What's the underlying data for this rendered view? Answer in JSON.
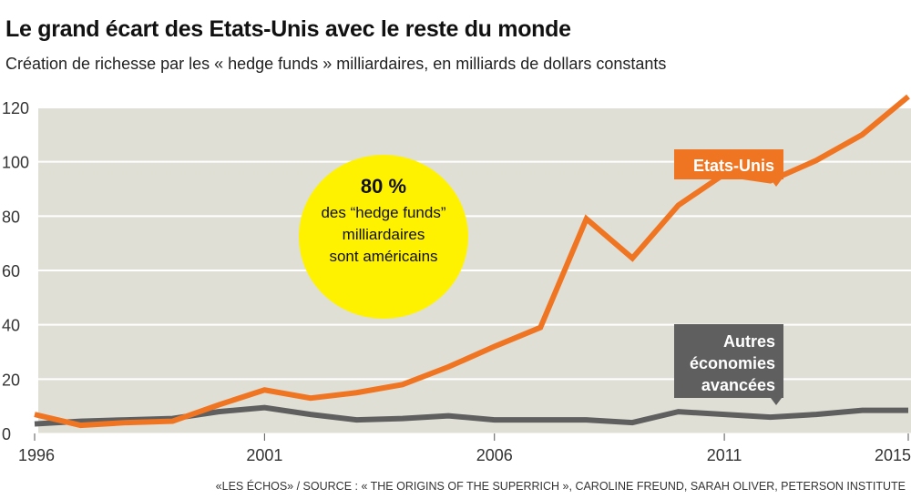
{
  "chart_data": {
    "type": "line",
    "title": "Le grand écart des Etats-Unis avec le reste du monde",
    "subtitle": "Création de richesse par les « hedge funds » milliardaires, en milliards de dollars constants",
    "x": [
      1996,
      1997,
      1998,
      1999,
      2000,
      2001,
      2002,
      2003,
      2004,
      2005,
      2006,
      2007,
      2008,
      2009,
      2010,
      2011,
      2012,
      2013,
      2014,
      2015
    ],
    "series": [
      {
        "name": "Etats-Unis",
        "color": "#f07522",
        "values": [
          7,
          3,
          4,
          4.5,
          10.5,
          16,
          13,
          15,
          18,
          24.5,
          32,
          39,
          79,
          64.5,
          84,
          95.5,
          93,
          100.5,
          110,
          124
        ]
      },
      {
        "name": "Autres économies avancées",
        "color": "#5f5f5f",
        "values": [
          3.5,
          4.5,
          5,
          5.5,
          8,
          9.5,
          7,
          5,
          5.5,
          6.5,
          5,
          5,
          5,
          4,
          8,
          7,
          6,
          7,
          8.5,
          8.5
        ]
      }
    ],
    "xticks": [
      "1996",
      "2001",
      "2006",
      "2011",
      "2015"
    ],
    "yticks": [
      "0",
      "20",
      "40",
      "60",
      "80",
      "100",
      "120"
    ],
    "ylim": [
      0,
      120
    ],
    "grid": true,
    "plot_background": "#e0dfd6",
    "annotation": {
      "big": "80 %",
      "lines": [
        "des “hedge funds”",
        "milliardaires",
        "sont américains"
      ],
      "color": "#fff200"
    },
    "source": "«LES ÉCHOS» / SOURCE : « THE ORIGINS OF THE SUPERRICH », CAROLINE FREUND, SARAH OLIVER, PETERSON INSTITUTE"
  }
}
